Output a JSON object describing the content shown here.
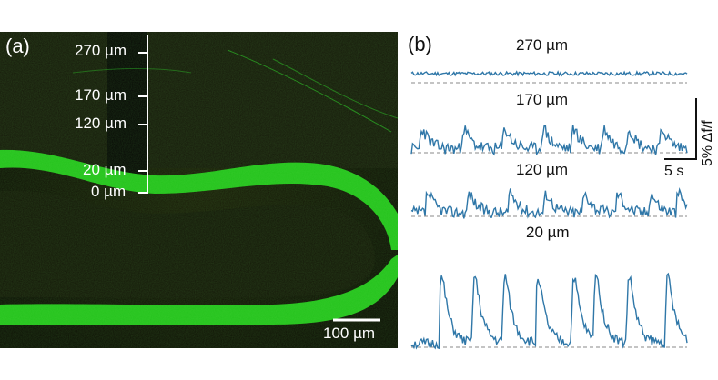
{
  "panel_a": {
    "label": "(a)",
    "depth_labels": [
      "270 µm",
      "170 µm",
      "120 µm",
      "20 µm",
      "0 µm"
    ],
    "scale_bar_label": "100 µm"
  },
  "panel_b": {
    "label": "(b)",
    "traces": [
      {
        "title": "270 µm",
        "peaks": [],
        "noise": 0.35,
        "seed": 11
      },
      {
        "title": "170 µm",
        "peaks": [
          0.03,
          0.18,
          0.33,
          0.47,
          0.58,
          0.69,
          0.78,
          0.9
        ],
        "amp": 1.0,
        "noise": 0.35,
        "seed": 23
      },
      {
        "title": "120 µm",
        "peaks": [
          0.05,
          0.2,
          0.35,
          0.48,
          0.62,
          0.74,
          0.86,
          0.96
        ],
        "amp": 1.0,
        "noise": 0.35,
        "seed": 37
      },
      {
        "title": "20 µm",
        "peaks": [
          0.1,
          0.22,
          0.33,
          0.45,
          0.58,
          0.66,
          0.78,
          0.92
        ],
        "amp": 3.0,
        "noise": 0.25,
        "seed": 51
      }
    ],
    "scale_y_label": "5% Δf/f",
    "scale_x_label": "5 s"
  },
  "colors": {
    "trace": "#2f77a8",
    "baseline": "#888888",
    "tissue": "#24c21c"
  }
}
